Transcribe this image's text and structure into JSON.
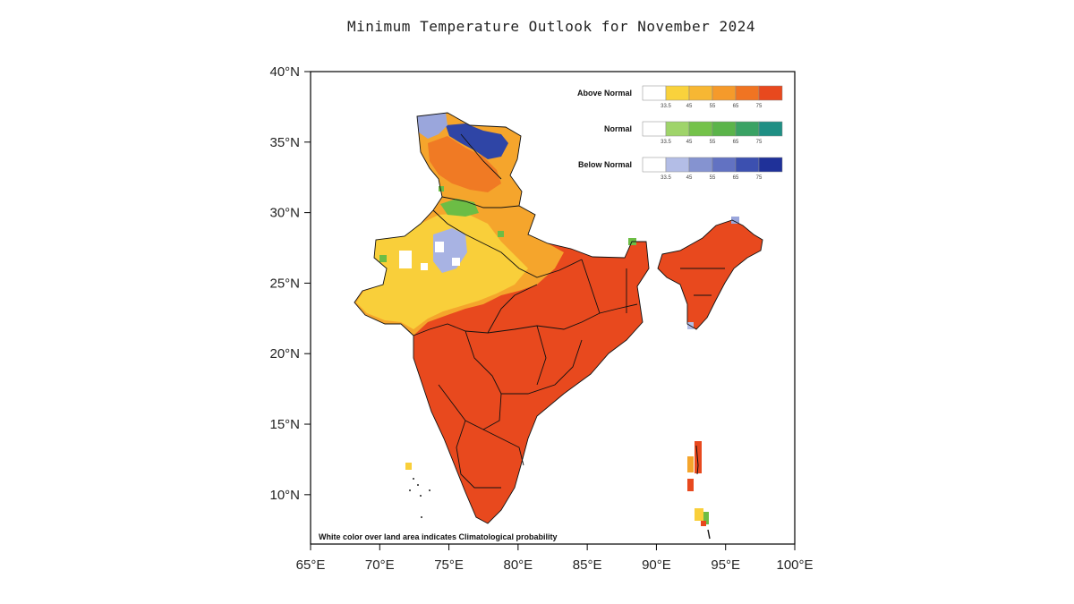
{
  "title": "Minimum Temperature Outlook for November 2024",
  "note": "White color over land area indicates Climatological probability",
  "axes": {
    "x_ticks": [
      "65°E",
      "70°E",
      "75°E",
      "80°E",
      "85°E",
      "90°E",
      "95°E",
      "100°E"
    ],
    "y_ticks": [
      "40°N",
      "35°N",
      "30°N",
      "25°N",
      "20°N",
      "15°N",
      "10°N"
    ],
    "lon_range": [
      65,
      100
    ],
    "lat_range": [
      6.5,
      40
    ]
  },
  "legend": {
    "categories": [
      {
        "name": "Above Normal",
        "colors": [
          "#ffffff",
          "#f9d23c",
          "#f7b733",
          "#f59a2b",
          "#f07422",
          "#e8491e"
        ]
      },
      {
        "name": "Normal",
        "colors": [
          "#ffffff",
          "#9fd46a",
          "#74c24a",
          "#5bb44a",
          "#3aa264",
          "#1f8f84"
        ]
      },
      {
        "name": "Below Normal",
        "colors": [
          "#ffffff",
          "#b3bde6",
          "#8593d0",
          "#6272c2",
          "#3c50b0",
          "#1f3199"
        ]
      }
    ],
    "tick_values": [
      "33.5",
      "45",
      "55",
      "65",
      "75"
    ]
  },
  "colors": {
    "above_strong": "#e8491e",
    "above_mid": "#f5922a",
    "above_light": "#f9c83a",
    "normal": "#6cbd45",
    "below": "#3c50b0",
    "below_light": "#9aa6dc"
  }
}
